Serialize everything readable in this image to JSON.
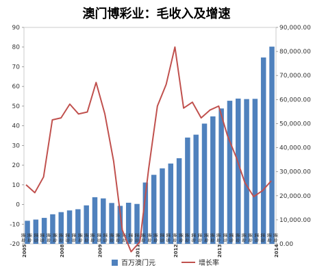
{
  "title": "澳门博彩业：毛收入及增速",
  "chart_data": {
    "type": "bar+line",
    "title": "澳门博彩业：毛收入及增速",
    "left_axis": {
      "min": -20,
      "max": 90,
      "step": 10,
      "ticks": [
        "-20",
        "-10",
        "0",
        "10",
        "20",
        "30",
        "40",
        "50",
        "60",
        "70",
        "80",
        "90"
      ]
    },
    "right_axis": {
      "min": 0,
      "max": 90000,
      "step": 10000,
      "ticks": [
        "0.00",
        "10,000.00",
        "20,000.00",
        "30,000.00",
        "40,000.00",
        "50,000.00",
        "60,000.00",
        "70,000.00",
        "80,000.00",
        "90,000.00"
      ]
    },
    "x_labels": [
      "2005",
      "2008",
      "2009",
      "2011",
      "2012",
      "2013",
      "2014"
    ],
    "x_label_slots": [
      0,
      6,
      12,
      18,
      24,
      31,
      40
    ],
    "category_text": "年第",
    "series": [
      {
        "name": "百万澳门元",
        "kind": "bar",
        "axis": "right",
        "color": "#4f81bd",
        "values": [
          9600,
          10100,
          10800,
          12300,
          13200,
          13900,
          14400,
          16000,
          19400,
          18900,
          17000,
          15800,
          17100,
          16600,
          25500,
          28700,
          31400,
          33400,
          35600,
          44200,
          45400,
          50000,
          53000,
          56300,
          59500,
          60400,
          60200,
          60300,
          77500,
          82000
        ]
      },
      {
        "name": "增长率",
        "kind": "line",
        "axis": "left",
        "color": "#c0504d",
        "values": [
          10,
          6,
          14,
          43,
          44,
          51,
          46,
          47,
          62,
          46,
          22,
          -13,
          -24,
          -19,
          18,
          50,
          61,
          80,
          49,
          52,
          44,
          48,
          50,
          35,
          24,
          11,
          4,
          7,
          12
        ]
      }
    ],
    "legend_position": "bottom"
  }
}
